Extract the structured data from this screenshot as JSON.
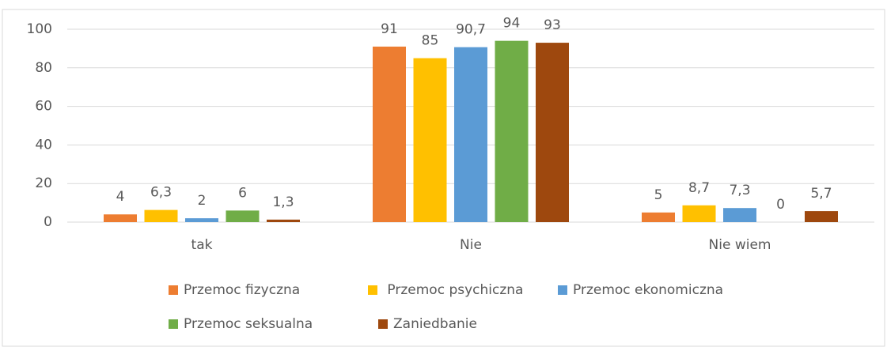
{
  "chart_data": {
    "type": "bar",
    "categories": [
      "tak",
      "Nie",
      "Nie wiem"
    ],
    "series": [
      {
        "name": "Przemoc fizyczna",
        "color": "#ed7d31",
        "values": [
          4,
          91,
          5
        ],
        "value_labels": [
          "4",
          "91",
          "5"
        ]
      },
      {
        "name": " Przemoc psychiczna",
        "color": "#ffc000",
        "values": [
          6.3,
          85,
          8.7
        ],
        "value_labels": [
          "6,3",
          "85",
          "8,7"
        ]
      },
      {
        "name": "Przemoc ekonomiczna",
        "color": "#5b9bd5",
        "values": [
          2,
          90.7,
          7.3
        ],
        "value_labels": [
          "2",
          "90,7",
          "7,3"
        ]
      },
      {
        "name": "Przemoc seksualna",
        "color": "#70ad47",
        "values": [
          6,
          94,
          0
        ],
        "value_labels": [
          "6",
          "94",
          "0"
        ]
      },
      {
        "name": "Zaniedbanie",
        "color": "#9e480e",
        "values": [
          1.3,
          93,
          5.7
        ],
        "value_labels": [
          "1,3",
          "93",
          "5,7"
        ]
      }
    ],
    "ylim": [
      0,
      100
    ],
    "yticks": [
      0,
      20,
      40,
      60,
      80,
      100
    ],
    "grid": true,
    "legend": "bottom"
  }
}
